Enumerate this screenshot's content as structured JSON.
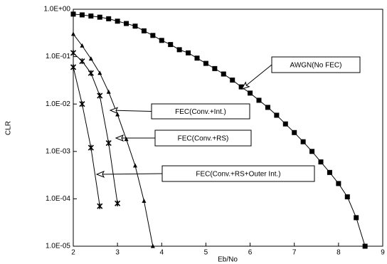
{
  "chart_data": {
    "type": "line",
    "log_y": true,
    "grid": false,
    "xlabel": "Eb/No",
    "ylabel": "CLR",
    "xlim": [
      2,
      9
    ],
    "xticks": [
      2,
      3,
      4,
      5,
      6,
      7,
      8,
      9
    ],
    "ylim": [
      1e-05,
      1
    ],
    "yticks": [
      {
        "value": 1,
        "label": "1.0E+00"
      },
      {
        "value": 0.1,
        "label": "1.0E-01"
      },
      {
        "value": 0.01,
        "label": "1.0E-02"
      },
      {
        "value": 0.001,
        "label": "1.0E-03"
      },
      {
        "value": 0.0001,
        "label": "1.0E-04"
      },
      {
        "value": 1e-05,
        "label": "1.0E-05"
      }
    ],
    "series": [
      {
        "name": "AWGN(No FEC)",
        "color": "#000000",
        "marker": "square",
        "x": [
          2.0,
          2.2,
          2.4,
          2.6,
          2.8,
          3.0,
          3.2,
          3.4,
          3.6,
          3.8,
          4.0,
          4.2,
          4.4,
          4.6,
          4.8,
          5.0,
          5.2,
          5.4,
          5.6,
          5.8,
          6.0,
          6.2,
          6.4,
          6.6,
          6.8,
          7.0,
          7.2,
          7.4,
          7.6,
          7.8,
          8.0,
          8.2,
          8.4,
          8.6
        ],
        "values": [
          0.79,
          0.76,
          0.72,
          0.68,
          0.63,
          0.56,
          0.5,
          0.44,
          0.35,
          0.28,
          0.22,
          0.18,
          0.14,
          0.12,
          0.093,
          0.072,
          0.056,
          0.043,
          0.032,
          0.023,
          0.017,
          0.012,
          0.0085,
          0.0058,
          0.0038,
          0.0025,
          0.0016,
          0.001,
          0.0006,
          0.00036,
          0.00021,
          0.00011,
          4e-05,
          1e-05
        ]
      },
      {
        "name": "FEC(Conv.+Int.)",
        "color": "#000000",
        "marker": "triangle",
        "x": [
          2.0,
          2.2,
          2.4,
          2.6,
          2.8,
          3.0,
          3.2,
          3.4,
          3.6,
          3.8
        ],
        "values": [
          0.3,
          0.17,
          0.09,
          0.045,
          0.018,
          0.006,
          0.0018,
          0.0005,
          9e-05,
          1e-05
        ]
      },
      {
        "name": "FEC(Conv.+RS)",
        "color": "#000000",
        "marker": "star",
        "x": [
          2.0,
          2.2,
          2.4,
          2.6,
          2.8,
          3.0
        ],
        "values": [
          0.12,
          0.08,
          0.045,
          0.015,
          0.0015,
          8e-05
        ]
      },
      {
        "name": "FEC(Conv.+RS+Outer Int.)",
        "color": "#000000",
        "marker": "star",
        "x": [
          2.0,
          2.2,
          2.4,
          2.6
        ],
        "values": [
          0.06,
          0.01,
          0.0012,
          7e-05
        ]
      }
    ]
  }
}
